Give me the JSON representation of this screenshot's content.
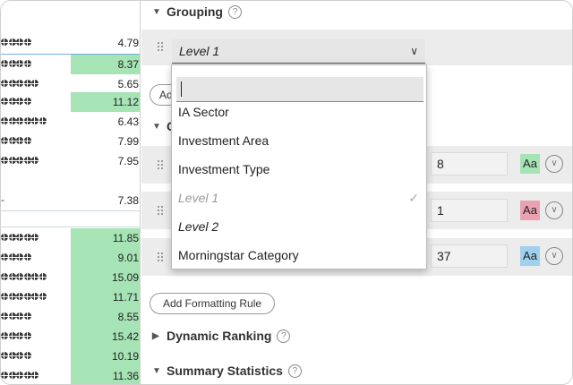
{
  "grid": {
    "rows": [
      {
        "globes": 4,
        "value": "4.79",
        "highlight": false
      },
      {
        "globes": 4,
        "value": "8.37",
        "highlight": true
      },
      {
        "globes": 5,
        "value": "5.65",
        "highlight": false
      },
      {
        "globes": 4,
        "value": "11.12",
        "highlight": true
      },
      {
        "globes": 6,
        "value": "6.43",
        "highlight": false
      },
      {
        "globes": 4,
        "value": "7.99",
        "highlight": false
      },
      {
        "globes": 5,
        "value": "7.95",
        "highlight": false
      },
      {
        "globes": 0,
        "value": "7.38",
        "highlight": false
      },
      {
        "globes": 5,
        "value": "11.85",
        "highlight": true
      },
      {
        "globes": 4,
        "value": "9.01",
        "highlight": true
      },
      {
        "globes": 6,
        "value": "15.09",
        "highlight": true
      },
      {
        "globes": 6,
        "value": "11.71",
        "highlight": true
      },
      {
        "globes": 4,
        "value": "8.55",
        "highlight": true
      },
      {
        "globes": 4,
        "value": "15.42",
        "highlight": true
      },
      {
        "globes": 4,
        "value": "10.19",
        "highlight": true
      },
      {
        "globes": 5,
        "value": "11.36",
        "highlight": true
      }
    ]
  },
  "panel": {
    "grouping_title": "Grouping",
    "help_glyph": "?",
    "selected_level": "Level 1",
    "chevron": "∨",
    "add_button_partial": "Ad",
    "conditional_partial": "C",
    "rules": [
      {
        "value": "8",
        "aa_label": "Aa",
        "aa_color": "#a6e3b5"
      },
      {
        "value": "1",
        "aa_label": "Aa",
        "aa_color": "#e8a2b2"
      },
      {
        "value": "37",
        "aa_label": "Aa",
        "aa_color": "#9fd0ee"
      }
    ],
    "add_formatting_rule": "Add Formatting Rule",
    "dynamic_ranking": "Dynamic Ranking",
    "summary_statistics": "Summary Statistics"
  },
  "dropdown": {
    "search_value": "",
    "items": [
      {
        "label": "IA Sector",
        "style": "normal",
        "checked": false
      },
      {
        "label": "Investment Area",
        "style": "normal",
        "checked": false
      },
      {
        "label": "Investment Type",
        "style": "normal",
        "checked": false
      },
      {
        "label": "Level 1",
        "style": "level1",
        "checked": true
      },
      {
        "label": "Level 2",
        "style": "level2",
        "checked": false
      },
      {
        "label": "Morningstar Category",
        "style": "normal",
        "checked": false
      }
    ],
    "check_glyph": "✓"
  }
}
